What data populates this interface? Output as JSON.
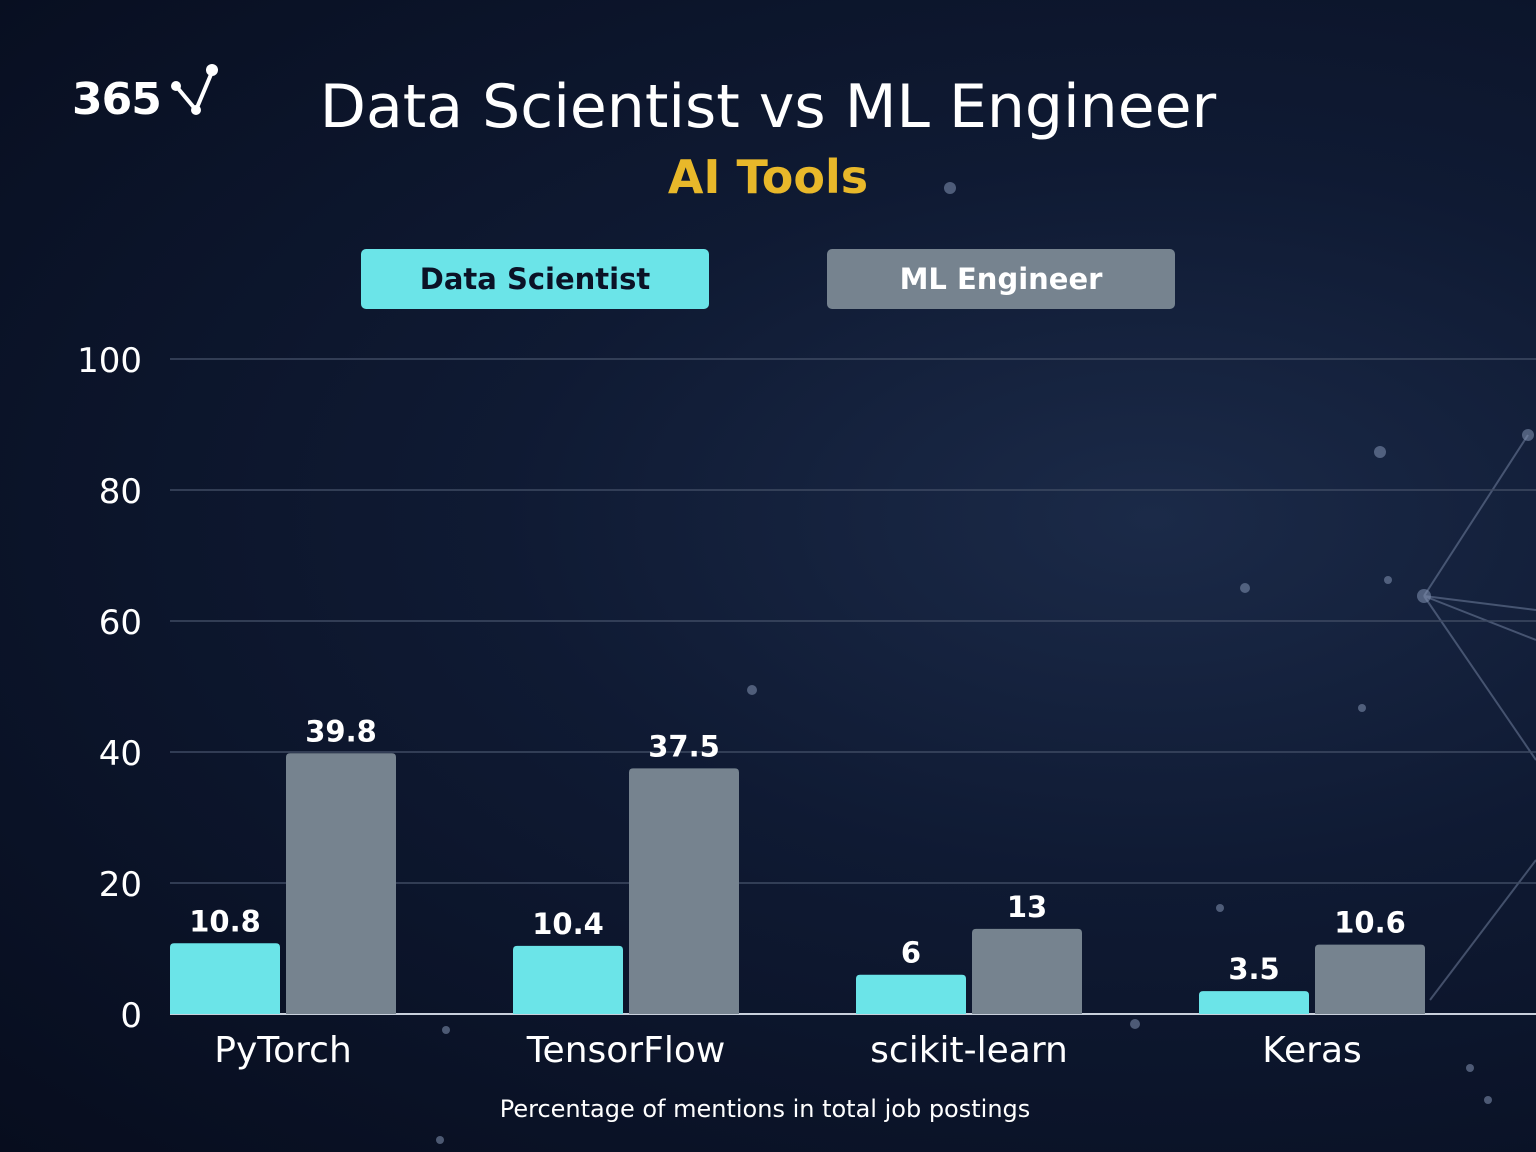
{
  "logo": {
    "text": "365"
  },
  "header": {
    "title": "Data Scientist vs ML Engineer",
    "subtitle": "AI Tools"
  },
  "colors": {
    "data_scientist": "#6be4e8",
    "ml_engineer": "#76838f",
    "accent": "#e8b82a",
    "grid": "#3e4a62"
  },
  "legend": {
    "items": [
      {
        "label": "Data Scientist"
      },
      {
        "label": "ML Engineer"
      }
    ]
  },
  "chart_data": {
    "type": "bar",
    "title": "Data Scientist vs ML Engineer",
    "subtitle": "AI Tools",
    "categories": [
      "PyTorch",
      "TensorFlow",
      "scikit-learn",
      "Keras"
    ],
    "series": [
      {
        "name": "Data Scientist",
        "values": [
          10.8,
          10.4,
          6,
          3.5
        ]
      },
      {
        "name": "ML Engineer",
        "values": [
          39.8,
          37.5,
          13,
          10.6
        ]
      }
    ],
    "yticks": [
      0,
      20,
      40,
      60,
      80,
      100
    ],
    "ylim": [
      0,
      100
    ],
    "xlabel": "Percentage of mentions in total job postings",
    "ylabel": "",
    "grid": true,
    "legend_position": "top"
  }
}
